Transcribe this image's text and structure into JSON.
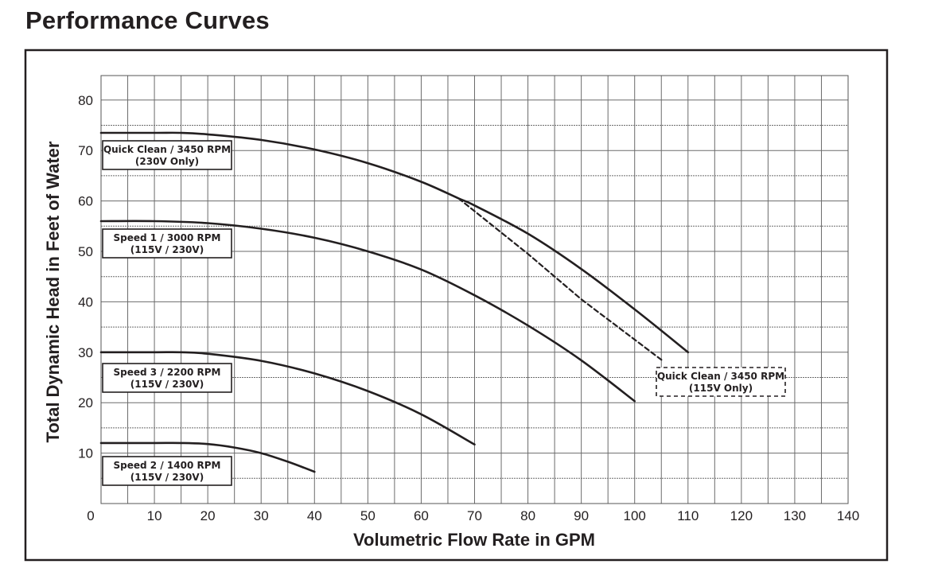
{
  "page_title": "Performance Curves",
  "chart_data": {
    "type": "line",
    "xlabel": "Volumetric Flow Rate in GPM",
    "ylabel": "Total Dynamic Head in Feet of Water",
    "xlim": [
      0,
      140
    ],
    "ylim": [
      0,
      85
    ],
    "x_ticks": [
      0,
      10,
      20,
      30,
      40,
      50,
      60,
      70,
      80,
      90,
      100,
      110,
      120,
      130,
      140
    ],
    "y_ticks": [
      0,
      10,
      20,
      30,
      40,
      50,
      60,
      70,
      80
    ],
    "x_tick_labels": [
      "0",
      "10",
      "20",
      "30",
      "40",
      "50",
      "60",
      "70",
      "80",
      "90",
      "100",
      "110",
      "120",
      "130",
      "140"
    ],
    "y_tick_labels": [
      "0",
      "10",
      "20",
      "30",
      "40",
      "50",
      "60",
      "70",
      "80"
    ],
    "grid": true,
    "series": [
      {
        "key": "qc230",
        "name": "Quick Clean / 3450 RPM",
        "name_line2": "(230V Only)",
        "style": "solid",
        "x": [
          0,
          10,
          15,
          20,
          30,
          40,
          50,
          60,
          67,
          70,
          80,
          90,
          100,
          110
        ],
        "y": [
          73.5,
          73.5,
          73.5,
          73.2,
          72.1,
          70.2,
          67.5,
          63.8,
          60.5,
          59.1,
          53.5,
          46.5,
          38.5,
          30
        ]
      },
      {
        "key": "qc115",
        "name": "Quick Clean / 3450 RPM",
        "name_line2": "(115V Only)",
        "style": "dashed",
        "x": [
          67,
          80,
          90,
          105
        ],
        "y": [
          60.5,
          49.5,
          40.5,
          28.5
        ]
      },
      {
        "key": "s1",
        "name": "Speed 1 / 3000 RPM",
        "name_line2": "(115V / 230V)",
        "style": "solid",
        "x": [
          0,
          10,
          20,
          30,
          40,
          50,
          60,
          70,
          80,
          90,
          100
        ],
        "y": [
          56,
          56,
          55.6,
          54.5,
          52.7,
          50,
          46.4,
          41.3,
          35.3,
          28.4,
          20.3
        ]
      },
      {
        "key": "s3",
        "name": "Speed 3 / 2200 RPM",
        "name_line2": "(115V / 230V)",
        "style": "solid",
        "x": [
          0,
          10,
          15,
          20,
          30,
          40,
          50,
          60,
          70
        ],
        "y": [
          30,
          30,
          30,
          29.7,
          28.3,
          25.8,
          22.3,
          17.7,
          11.7
        ]
      },
      {
        "key": "s2",
        "name": "Speed 2 / 1400 RPM",
        "name_line2": "(115V / 230V)",
        "style": "solid",
        "x": [
          0,
          10,
          15,
          20,
          25,
          30,
          35,
          40
        ],
        "y": [
          12,
          12,
          12,
          11.8,
          11.1,
          10.0,
          8.3,
          6.3
        ]
      }
    ]
  }
}
